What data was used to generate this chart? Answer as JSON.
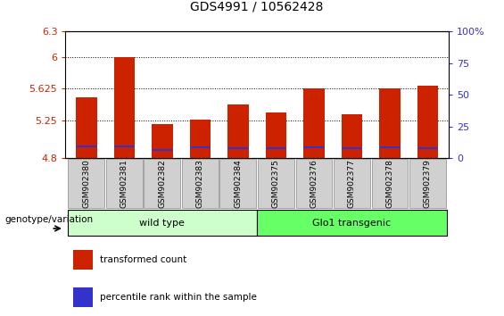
{
  "title": "GDS4991 / 10562428",
  "categories": [
    "GSM902380",
    "GSM902381",
    "GSM902382",
    "GSM902383",
    "GSM902384",
    "GSM902375",
    "GSM902376",
    "GSM902377",
    "GSM902378",
    "GSM902379"
  ],
  "bar_values": [
    5.52,
    6.0,
    5.2,
    5.255,
    5.435,
    5.345,
    5.625,
    5.32,
    5.625,
    5.655
  ],
  "percentile_values": [
    4.935,
    4.935,
    4.895,
    4.925,
    4.92,
    4.92,
    4.925,
    4.915,
    4.93,
    4.92
  ],
  "bar_color": "#cc2200",
  "percentile_color": "#3333cc",
  "ymin": 4.8,
  "ymax": 6.3,
  "yticks": [
    4.8,
    5.25,
    5.625,
    6.0,
    6.3
  ],
  "ytick_labels": [
    "4.8",
    "5.25",
    "5.625",
    "6",
    "6.3"
  ],
  "right_yticks": [
    0,
    25,
    50,
    75,
    100
  ],
  "right_ytick_labels": [
    "0",
    "25",
    "50",
    "75",
    "100%"
  ],
  "grid_values": [
    5.25,
    5.625,
    6.0
  ],
  "wild_type_label": "wild type",
  "glo1_label": "Glo1 transgenic",
  "group_label": "genotype/variation",
  "legend_red": "transformed count",
  "legend_blue": "percentile rank within the sample",
  "wild_type_color": "#ccffcc",
  "glo1_color": "#66ff66",
  "bar_width": 0.55,
  "n_wild": 5,
  "n_glo1": 5
}
